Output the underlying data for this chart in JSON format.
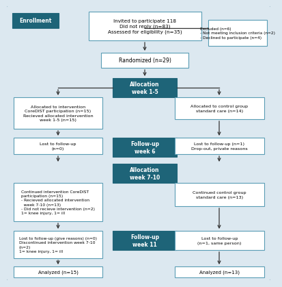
{
  "bg_color": "#dce8f0",
  "teal_color": "#1e6478",
  "box_border": "#5a9db5",
  "white": "#ffffff",
  "enrollment_label": "Enrollment",
  "top_box": "Invited to participate 118\nDid not reply (n=83)\nAssessed for eligibility (n=35)",
  "excluded_box": "Excluded (n=6)\n- Not meeting inclusion criteria (n=2)\n- Declined to participate (n=4)",
  "randomized_box": "Randomized (n=29)",
  "alloc1_label": "Allocation\nweek 1-5",
  "left_alloc1": "Allocated to intervention\nCoreDIST participation (n=15)\nRecieved allocated intervention\nweek 1-5 (n=15)",
  "right_alloc1": "Allocated to control group\nstandard care (n=14)",
  "followup1_label": "Follow-up\nweek 6",
  "left_fu1": "Lost to follow-up\n(n=0)",
  "right_fu1": "Lost to follow-up (n=1)\nDrop-out, private reasons",
  "alloc2_label": "Allocation\nweek 7-10",
  "left_alloc2": "Continued intervention CoreDIST\nparticipation (n=15)\n- Recieved allocated intervention\n  week 7-10 (n=13)\n- Did not recieve intervention (n=2)\n1= knee injury, 1= ill",
  "right_alloc2": "Continued control group\nstandard care (n=13)",
  "followup2_label": "Follow-up\nweek 11",
  "left_fu2": "Lost to follow-up (give reasons) (n=0)\nDiscontinued intervention week 7-10\n(n=2)\n1= knee injury, 1= ill",
  "right_fu2": "Lost to follow-up\n(n=1, same person)",
  "left_analyzed": "Analyzed (n=15)",
  "right_analyzed": "Analyzed (n=13)"
}
